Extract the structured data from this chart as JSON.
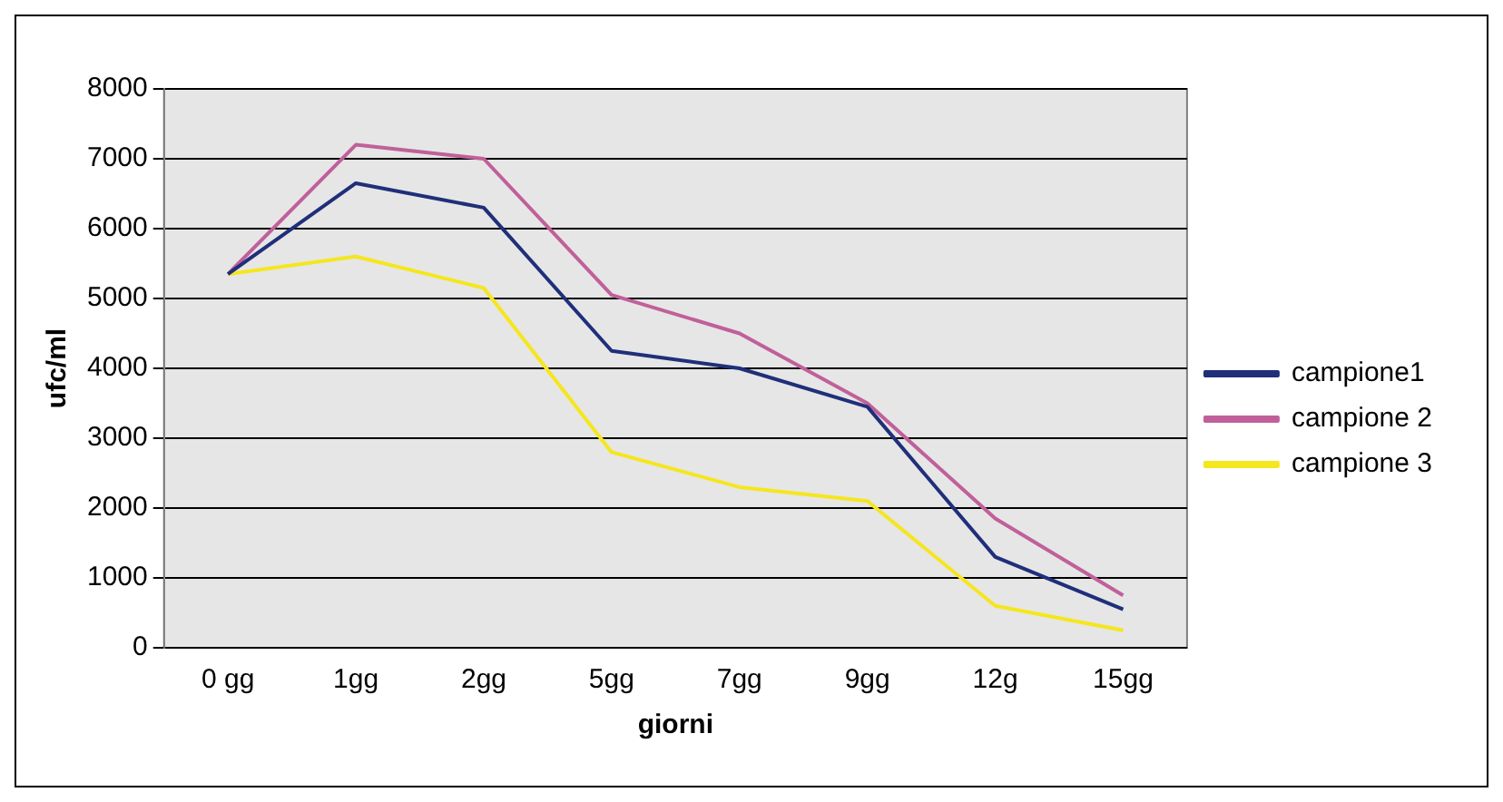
{
  "chart_data": {
    "type": "line",
    "xlabel": "giorni",
    "ylabel": "ufc/ml",
    "categories": [
      "0 gg",
      "1gg",
      "2gg",
      "5gg",
      "7gg",
      "9gg",
      "12g",
      "15gg"
    ],
    "series": [
      {
        "name": "campione1",
        "color": "#1f2f7a",
        "values": [
          5350,
          6650,
          6300,
          4250,
          4000,
          3450,
          1300,
          550
        ]
      },
      {
        "name": "campione 2",
        "color": "#c0609a",
        "values": [
          5350,
          7200,
          7000,
          5050,
          4500,
          3500,
          1850,
          750
        ]
      },
      {
        "name": "campione 3",
        "color": "#f5e61e",
        "values": [
          5350,
          5600,
          5150,
          2800,
          2300,
          2100,
          600,
          250
        ]
      }
    ],
    "ylim": [
      0,
      8000
    ],
    "yticks": [
      0,
      1000,
      2000,
      3000,
      4000,
      5000,
      6000,
      7000,
      8000
    ],
    "grid": "y",
    "legend": "right",
    "marker": "none",
    "line_style": "solid"
  }
}
